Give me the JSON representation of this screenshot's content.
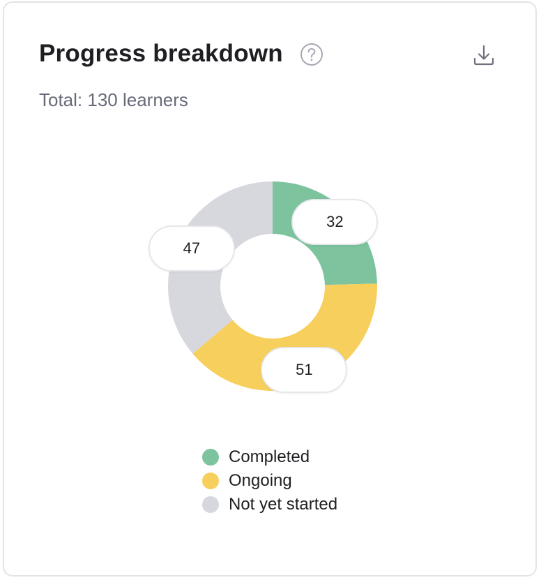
{
  "header": {
    "title": "Progress breakdown",
    "help_icon": "question-circle-icon",
    "download_icon": "download-icon"
  },
  "summary": {
    "total_text": "Total: 130 learners"
  },
  "colors": {
    "completed": "#7cc39e",
    "ongoing": "#f7cf5d",
    "not_started": "#d6d8de"
  },
  "chart_data": {
    "type": "pie",
    "variant": "donut",
    "total": 130,
    "slices": [
      {
        "label": "Completed",
        "value": 32,
        "color": "#7cc39e"
      },
      {
        "label": "Ongoing",
        "value": 51,
        "color": "#f7cf5d"
      },
      {
        "label": "Not yet started",
        "value": 47,
        "color": "#d6d8de"
      }
    ],
    "legend_position": "bottom"
  }
}
